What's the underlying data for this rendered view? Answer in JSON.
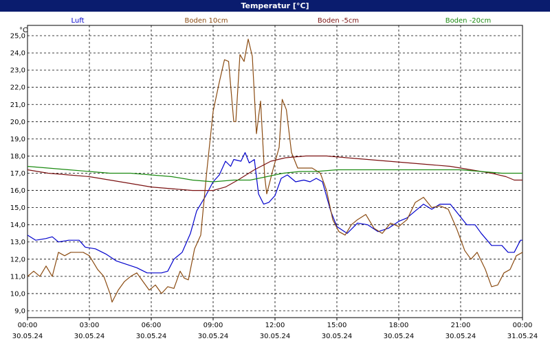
{
  "window": {
    "title": "Temperatur [°C]"
  },
  "chart_data": {
    "type": "line",
    "title": "Temperatur [°C]",
    "ylabel": "°C",
    "xlabel": "",
    "ylim": [
      8.6,
      25.6
    ],
    "xlim": [
      0,
      24
    ],
    "grid": true,
    "legend_position": "top",
    "y_ticks": [
      {
        "v": 9,
        "label": "9,0"
      },
      {
        "v": 10,
        "label": "10,0"
      },
      {
        "v": 11,
        "label": "11,0"
      },
      {
        "v": 12,
        "label": "12,0"
      },
      {
        "v": 13,
        "label": "13,0"
      },
      {
        "v": 14,
        "label": "14,0"
      },
      {
        "v": 15,
        "label": "15,0"
      },
      {
        "v": 16,
        "label": "16,0"
      },
      {
        "v": 17,
        "label": "17,0"
      },
      {
        "v": 18,
        "label": "18,0"
      },
      {
        "v": 19,
        "label": "19,0"
      },
      {
        "v": 20,
        "label": "20,0"
      },
      {
        "v": 21,
        "label": "21,0"
      },
      {
        "v": 22,
        "label": "22,0"
      },
      {
        "v": 23,
        "label": "23,0"
      },
      {
        "v": 24,
        "label": "24,0"
      },
      {
        "v": 25,
        "label": "25,0"
      }
    ],
    "x_ticks": [
      {
        "h": 0,
        "time": "00:00",
        "date": "30.05.24"
      },
      {
        "h": 3,
        "time": "03:00",
        "date": "30.05.24"
      },
      {
        "h": 6,
        "time": "06:00",
        "date": "30.05.24"
      },
      {
        "h": 9,
        "time": "09:00",
        "date": "30.05.24"
      },
      {
        "h": 12,
        "time": "12:00",
        "date": "30.05.24"
      },
      {
        "h": 15,
        "time": "15:00",
        "date": "30.05.24"
      },
      {
        "h": 18,
        "time": "18:00",
        "date": "30.05.24"
      },
      {
        "h": 21,
        "time": "21:00",
        "date": "30.05.24"
      },
      {
        "h": 24,
        "time": "00:00",
        "date": "31.05.24"
      }
    ],
    "series": [
      {
        "name": "Luft",
        "color": "#0000cc",
        "points": [
          [
            0,
            13.4
          ],
          [
            0.4,
            13.1
          ],
          [
            0.9,
            13.2
          ],
          [
            1.2,
            13.3
          ],
          [
            1.5,
            13.0
          ],
          [
            2,
            13.1
          ],
          [
            2.5,
            13.1
          ],
          [
            2.8,
            12.7
          ],
          [
            3.3,
            12.6
          ],
          [
            3.8,
            12.3
          ],
          [
            4.3,
            11.9
          ],
          [
            4.8,
            11.7
          ],
          [
            5.3,
            11.5
          ],
          [
            5.8,
            11.2
          ],
          [
            6.5,
            11.2
          ],
          [
            6.8,
            11.3
          ],
          [
            7.1,
            12.0
          ],
          [
            7.5,
            12.4
          ],
          [
            7.9,
            13.5
          ],
          [
            8.2,
            14.8
          ],
          [
            8.6,
            15.6
          ],
          [
            9.0,
            16.5
          ],
          [
            9.3,
            16.9
          ],
          [
            9.6,
            17.7
          ],
          [
            9.85,
            17.4
          ],
          [
            10.0,
            17.8
          ],
          [
            10.35,
            17.7
          ],
          [
            10.55,
            18.2
          ],
          [
            10.75,
            17.6
          ],
          [
            11.0,
            17.8
          ],
          [
            11.2,
            15.8
          ],
          [
            11.45,
            15.2
          ],
          [
            11.7,
            15.3
          ],
          [
            12.0,
            15.7
          ],
          [
            12.3,
            16.7
          ],
          [
            12.6,
            16.9
          ],
          [
            13.0,
            16.5
          ],
          [
            13.4,
            16.6
          ],
          [
            13.7,
            16.5
          ],
          [
            14.0,
            16.7
          ],
          [
            14.3,
            16.5
          ],
          [
            14.7,
            14.8
          ],
          [
            15.0,
            13.9
          ],
          [
            15.5,
            13.5
          ],
          [
            16.0,
            14.1
          ],
          [
            16.5,
            14.0
          ],
          [
            17.0,
            13.6
          ],
          [
            17.5,
            13.8
          ],
          [
            18.0,
            14.2
          ],
          [
            18.4,
            14.4
          ],
          [
            18.8,
            14.8
          ],
          [
            19.2,
            15.2
          ],
          [
            19.6,
            14.9
          ],
          [
            20.0,
            15.2
          ],
          [
            20.5,
            15.2
          ],
          [
            20.9,
            14.6
          ],
          [
            21.3,
            14.0
          ],
          [
            21.7,
            14.0
          ],
          [
            22.0,
            13.5
          ],
          [
            22.5,
            12.8
          ],
          [
            23.0,
            12.8
          ],
          [
            23.3,
            12.4
          ],
          [
            23.6,
            12.4
          ],
          [
            23.9,
            13.1
          ],
          [
            24.0,
            13.1
          ]
        ]
      },
      {
        "name": "Boden 10cm",
        "color": "#8a4a10",
        "points": [
          [
            0,
            11.0
          ],
          [
            0.3,
            11.3
          ],
          [
            0.6,
            11.0
          ],
          [
            0.9,
            11.6
          ],
          [
            1.2,
            11.0
          ],
          [
            1.5,
            12.4
          ],
          [
            1.8,
            12.2
          ],
          [
            2.1,
            12.4
          ],
          [
            2.7,
            12.4
          ],
          [
            3.0,
            12.2
          ],
          [
            3.4,
            11.4
          ],
          [
            3.7,
            11.0
          ],
          [
            4.0,
            10.0
          ],
          [
            4.1,
            9.5
          ],
          [
            4.4,
            10.2
          ],
          [
            4.7,
            10.7
          ],
          [
            5.0,
            11.0
          ],
          [
            5.3,
            11.2
          ],
          [
            5.6,
            10.7
          ],
          [
            5.9,
            10.2
          ],
          [
            6.2,
            10.5
          ],
          [
            6.5,
            10.0
          ],
          [
            6.8,
            10.4
          ],
          [
            7.1,
            10.3
          ],
          [
            7.4,
            11.3
          ],
          [
            7.6,
            10.9
          ],
          [
            7.8,
            10.8
          ],
          [
            8.1,
            12.6
          ],
          [
            8.4,
            13.4
          ],
          [
            8.7,
            17.2
          ],
          [
            9.0,
            20.6
          ],
          [
            9.3,
            22.3
          ],
          [
            9.55,
            23.6
          ],
          [
            9.75,
            23.5
          ],
          [
            10.0,
            20.0
          ],
          [
            10.1,
            20.0
          ],
          [
            10.3,
            23.9
          ],
          [
            10.5,
            23.5
          ],
          [
            10.7,
            24.8
          ],
          [
            10.9,
            23.8
          ],
          [
            11.1,
            19.3
          ],
          [
            11.3,
            21.2
          ],
          [
            11.5,
            16.8
          ],
          [
            11.6,
            15.8
          ],
          [
            11.9,
            17.2
          ],
          [
            12.2,
            18.5
          ],
          [
            12.35,
            21.3
          ],
          [
            12.55,
            20.7
          ],
          [
            12.8,
            18.2
          ],
          [
            13.1,
            17.3
          ],
          [
            13.5,
            17.3
          ],
          [
            13.8,
            17.3
          ],
          [
            14.2,
            17.0
          ],
          [
            14.5,
            16.0
          ],
          [
            14.8,
            14.3
          ],
          [
            15.1,
            13.6
          ],
          [
            15.4,
            13.4
          ],
          [
            15.7,
            14.0
          ],
          [
            16.0,
            14.3
          ],
          [
            16.4,
            14.6
          ],
          [
            16.8,
            13.8
          ],
          [
            17.2,
            13.5
          ],
          [
            17.6,
            14.1
          ],
          [
            18.0,
            13.9
          ],
          [
            18.4,
            14.3
          ],
          [
            18.8,
            15.3
          ],
          [
            19.2,
            15.6
          ],
          [
            19.6,
            15.0
          ],
          [
            20.0,
            15.1
          ],
          [
            20.4,
            14.9
          ],
          [
            20.8,
            13.8
          ],
          [
            21.2,
            12.5
          ],
          [
            21.5,
            12.0
          ],
          [
            21.8,
            12.4
          ],
          [
            22.2,
            11.4
          ],
          [
            22.5,
            10.4
          ],
          [
            22.8,
            10.5
          ],
          [
            23.1,
            11.2
          ],
          [
            23.4,
            11.4
          ],
          [
            23.7,
            12.2
          ],
          [
            24.0,
            12.4
          ]
        ]
      },
      {
        "name": "Boden -5cm",
        "color": "#7a1010",
        "points": [
          [
            0,
            17.2
          ],
          [
            1,
            17.0
          ],
          [
            2,
            16.9
          ],
          [
            3,
            16.8
          ],
          [
            4,
            16.6
          ],
          [
            5,
            16.4
          ],
          [
            6,
            16.2
          ],
          [
            7,
            16.1
          ],
          [
            8,
            16.0
          ],
          [
            9,
            16.0
          ],
          [
            9.6,
            16.2
          ],
          [
            10.2,
            16.6
          ],
          [
            11.0,
            17.2
          ],
          [
            11.8,
            17.7
          ],
          [
            12.5,
            17.9
          ],
          [
            13.5,
            18.0
          ],
          [
            14.5,
            18.0
          ],
          [
            15.5,
            17.9
          ],
          [
            16.5,
            17.8
          ],
          [
            17.5,
            17.7
          ],
          [
            18.5,
            17.6
          ],
          [
            19.5,
            17.5
          ],
          [
            20.5,
            17.4
          ],
          [
            21.5,
            17.2
          ],
          [
            22.5,
            17.0
          ],
          [
            23.2,
            16.8
          ],
          [
            23.6,
            16.6
          ],
          [
            24.0,
            16.6
          ]
        ]
      },
      {
        "name": "Boden -20cm",
        "color": "#1a8a10",
        "points": [
          [
            0,
            17.4
          ],
          [
            1,
            17.3
          ],
          [
            2,
            17.2
          ],
          [
            3,
            17.1
          ],
          [
            4,
            17.0
          ],
          [
            5,
            17.0
          ],
          [
            6,
            16.9
          ],
          [
            7,
            16.8
          ],
          [
            8,
            16.6
          ],
          [
            9,
            16.5
          ],
          [
            10,
            16.6
          ],
          [
            10.8,
            16.6
          ],
          [
            11.6,
            16.8
          ],
          [
            12.4,
            17.0
          ],
          [
            13.2,
            17.1
          ],
          [
            14,
            17.1
          ],
          [
            15,
            17.2
          ],
          [
            16,
            17.2
          ],
          [
            17,
            17.2
          ],
          [
            18,
            17.2
          ],
          [
            19,
            17.2
          ],
          [
            20,
            17.2
          ],
          [
            21,
            17.2
          ],
          [
            22,
            17.1
          ],
          [
            23,
            17.0
          ],
          [
            24,
            17.0
          ]
        ]
      }
    ]
  }
}
